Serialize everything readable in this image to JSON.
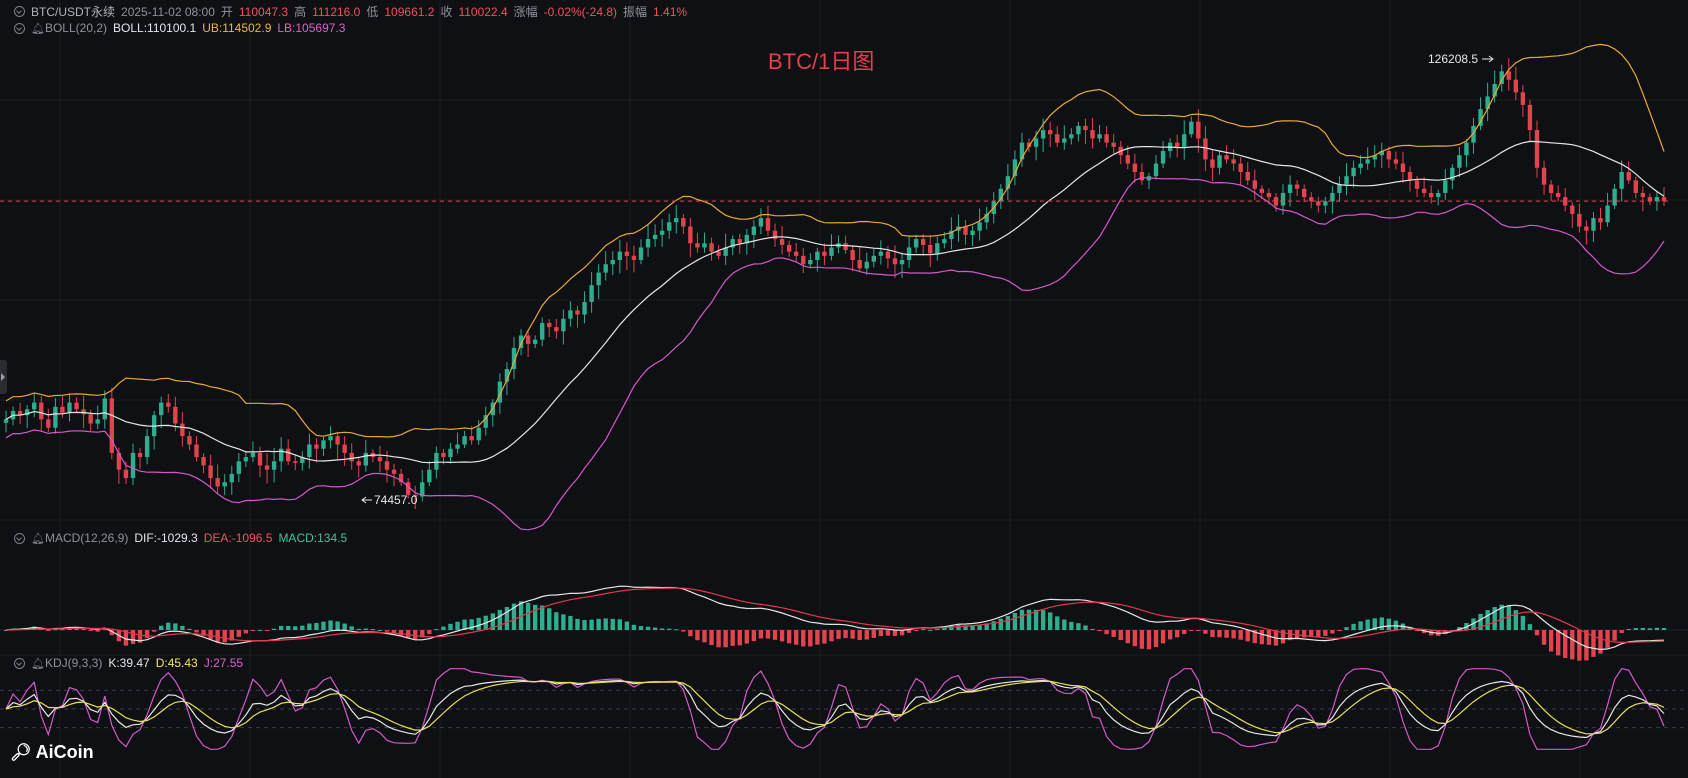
{
  "chart_title": "BTC/1日图",
  "header": {
    "symbol": "BTC/USDT永续",
    "datetime": "2025-11-02 08:00",
    "open_label": "开",
    "open_value": "110047.3",
    "high_label": "高",
    "high_value": "111216.0",
    "low_label": "低",
    "low_value": "109661.2",
    "close_label": "收",
    "close_value": "110022.4",
    "change_label": "涨幅",
    "change_value": "-0.02%(-24.8)",
    "amplitude_label": "振幅",
    "amplitude_value": "1.41%"
  },
  "boll_legend": {
    "name": "BOLL(20,2)",
    "boll": "BOLL:110100.1",
    "ub": "UB:114502.9",
    "lb": "LB:105697.3"
  },
  "macd_legend": {
    "name": "MACD(12,26,9)",
    "dif": "DIF:-1029.3",
    "dea": "DEA:-1096.5",
    "macd": "MACD:134.5"
  },
  "kdj_legend": {
    "name": "KDJ(9,3,3)",
    "k": "K:39.47",
    "d": "D:45.43",
    "j": "J:27.55"
  },
  "annotations": {
    "high_marker": "126208.5",
    "low_marker": "74457.0"
  },
  "logo": "AiCoin",
  "colors": {
    "background": "#0f1013",
    "up": "#2fae8f",
    "down": "#e1444f",
    "boll_mid": "#e6e6e6",
    "boll_ub": "#e5a93a",
    "boll_lb": "#d25ac8",
    "dif": "#e6e6e6",
    "dea": "#e0394a",
    "k": "#e6e6e6",
    "d": "#e8e05a",
    "j": "#d25ac8",
    "last_price_line": "#e1444f"
  },
  "chart_data": {
    "type": "candlestick",
    "panels": [
      "price_with_boll",
      "macd",
      "kdj"
    ],
    "ylim": [
      72000,
      129000
    ],
    "last_close": 110022.4,
    "closes": [
      84000,
      85000,
      84500,
      85200,
      86000,
      84000,
      83000,
      85500,
      84800,
      86000,
      85200,
      84600,
      83500,
      84000,
      86500,
      80000,
      78000,
      77000,
      80000,
      79500,
      82000,
      84500,
      86000,
      85500,
      83500,
      82000,
      81000,
      79500,
      78500,
      77000,
      76000,
      76500,
      77500,
      79000,
      79500,
      80000,
      78500,
      78000,
      79000,
      80500,
      79000,
      78800,
      79500,
      81000,
      80500,
      81500,
      82000,
      81000,
      80000,
      79000,
      78500,
      80000,
      79500,
      79000,
      78000,
      77500,
      76500,
      75000,
      74800,
      76500,
      78000,
      80000,
      79500,
      80500,
      81000,
      82000,
      81500,
      83000,
      84500,
      86000,
      88500,
      90000,
      92500,
      94000,
      93000,
      93500,
      95500,
      95000,
      94500,
      96000,
      97000,
      96500,
      98000,
      100000,
      101500,
      102500,
      103000,
      104000,
      103500,
      103000,
      104500,
      105500,
      106000,
      106500,
      107500,
      108000,
      107000,
      105000,
      104500,
      105000,
      104000,
      103500,
      104500,
      105500,
      105000,
      106000,
      107000,
      108000,
      106500,
      105500,
      104800,
      104000,
      103500,
      102500,
      103000,
      104000,
      103500,
      104500,
      105000,
      104200,
      103000,
      102000,
      102800,
      103500,
      104000,
      103200,
      102500,
      103000,
      104500,
      105500,
      104800,
      103800,
      105000,
      105500,
      106500,
      107000,
      106000,
      106500,
      107500,
      108500,
      110000,
      111500,
      113000,
      115000,
      117000,
      116500,
      117500,
      118500,
      118000,
      117000,
      117500,
      118000,
      119000,
      118500,
      117500,
      118000,
      117000,
      116500,
      115500,
      114500,
      113500,
      112500,
      113000,
      114500,
      116000,
      117000,
      116500,
      118000,
      119500,
      117500,
      115000,
      114000,
      115500,
      115000,
      114500,
      113500,
      112500,
      111500,
      111000,
      110500,
      109500,
      111000,
      112000,
      111500,
      110500,
      110000,
      109500,
      110000,
      111000,
      112000,
      113000,
      114000,
      114500,
      115000,
      115500,
      116000,
      115000,
      114500,
      113500,
      112500,
      111500,
      111000,
      110500,
      111000,
      112500,
      114000,
      115500,
      117000,
      119000,
      121000,
      122500,
      124000,
      125500,
      124500,
      123000,
      121500,
      118500,
      114000,
      112000,
      111000,
      110500,
      109500,
      108500,
      107000,
      106500,
      108000,
      107500,
      109500,
      111500,
      113500,
      112500,
      111000,
      110500,
      110000,
      110500,
      110022
    ]
  }
}
